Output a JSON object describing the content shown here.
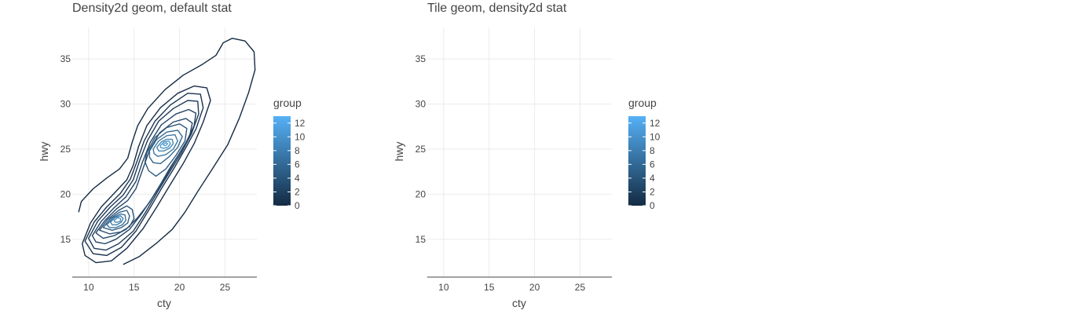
{
  "chart_data": [
    {
      "type": "line",
      "title": "Density2d geom, default stat",
      "xlabel": "cty",
      "ylabel": "hwy",
      "xlim": [
        8.2,
        28.5
      ],
      "ylim": [
        10.8,
        38.5
      ],
      "xticks": [
        10,
        15,
        20,
        25
      ],
      "yticks": [
        15,
        20,
        25,
        30,
        35
      ],
      "grid": true,
      "legend": {
        "title": "group",
        "placement": "right",
        "min": 0,
        "max": 13,
        "ticks": [
          0,
          2,
          4,
          6,
          8,
          10,
          12
        ],
        "color_low": "#132B43",
        "color_high": "#56B1F7"
      },
      "series": [
        {
          "group": 1,
          "color": "#132B43",
          "points": [
            [
              8.9,
              18.0
            ],
            [
              9.2,
              19.2
            ],
            [
              10.5,
              20.6
            ],
            [
              12.0,
              21.8
            ],
            [
              13.4,
              22.8
            ],
            [
              14.3,
              24.0
            ],
            [
              14.8,
              25.8
            ],
            [
              15.4,
              27.6
            ],
            [
              16.5,
              29.5
            ],
            [
              18.4,
              31.6
            ],
            [
              20.4,
              33.2
            ],
            [
              22.5,
              34.4
            ],
            [
              24.0,
              35.4
            ],
            [
              24.8,
              36.8
            ],
            [
              25.8,
              37.3
            ],
            [
              27.2,
              37.0
            ],
            [
              28.2,
              35.8
            ],
            [
              28.3,
              33.8
            ],
            [
              27.6,
              31.3
            ],
            [
              26.6,
              28.5
            ],
            [
              25.3,
              25.5
            ],
            [
              23.6,
              22.8
            ],
            [
              22.0,
              20.3
            ],
            [
              20.6,
              18.0
            ],
            [
              19.2,
              16.1
            ],
            [
              17.5,
              14.6
            ],
            [
              15.6,
              13.1
            ],
            [
              13.8,
              12.2
            ]
          ]
        },
        {
          "group": 2,
          "color": "#172C48",
          "points": [
            [
              9.3,
              14.5
            ],
            [
              10.2,
              16.8
            ],
            [
              11.4,
              18.6
            ],
            [
              13.0,
              20.3
            ],
            [
              14.2,
              21.6
            ],
            [
              14.9,
              23.2
            ],
            [
              15.5,
              25.3
            ],
            [
              16.4,
              27.6
            ],
            [
              17.9,
              29.6
            ],
            [
              19.8,
              31.2
            ],
            [
              21.6,
              32.0
            ],
            [
              23.0,
              31.8
            ],
            [
              23.4,
              30.4
            ],
            [
              22.6,
              28.0
            ],
            [
              21.6,
              25.6
            ],
            [
              20.4,
              23.4
            ],
            [
              19.0,
              21.1
            ],
            [
              17.5,
              18.6
            ],
            [
              16.0,
              16.2
            ],
            [
              14.2,
              14.0
            ],
            [
              12.5,
              12.6
            ],
            [
              10.8,
              12.4
            ],
            [
              9.6,
              13.2
            ]
          ]
        },
        {
          "group": 3,
          "color": "#1A3350",
          "points": [
            [
              9.6,
              14.8
            ],
            [
              10.6,
              16.9
            ],
            [
              12.0,
              18.6
            ],
            [
              13.5,
              20.1
            ],
            [
              14.6,
              21.7
            ],
            [
              15.3,
              23.6
            ],
            [
              16.1,
              25.9
            ],
            [
              17.3,
              28.1
            ],
            [
              19.0,
              29.9
            ],
            [
              20.9,
              31.2
            ],
            [
              22.3,
              31.1
            ],
            [
              22.6,
              29.6
            ],
            [
              21.8,
              27.2
            ],
            [
              20.6,
              25.0
            ],
            [
              19.4,
              22.9
            ],
            [
              18.0,
              20.6
            ],
            [
              16.6,
              18.2
            ],
            [
              15.2,
              15.9
            ],
            [
              13.6,
              14.1
            ],
            [
              12.0,
              13.2
            ],
            [
              10.5,
              13.4
            ]
          ]
        },
        {
          "group": 4,
          "color": "#1E3A59",
          "points": [
            [
              10.0,
              15.1
            ],
            [
              11.0,
              17.0
            ],
            [
              12.4,
              18.6
            ],
            [
              13.8,
              19.9
            ],
            [
              14.9,
              21.6
            ],
            [
              15.6,
              23.7
            ],
            [
              16.5,
              26.0
            ],
            [
              17.7,
              28.1
            ],
            [
              19.3,
              29.5
            ],
            [
              20.9,
              30.4
            ],
            [
              22.0,
              30.3
            ],
            [
              22.1,
              28.9
            ],
            [
              21.3,
              26.7
            ],
            [
              20.2,
              24.6
            ],
            [
              19.0,
              22.6
            ],
            [
              17.6,
              20.3
            ],
            [
              16.2,
              17.9
            ],
            [
              14.9,
              15.9
            ],
            [
              13.3,
              14.5
            ],
            [
              11.9,
              13.8
            ],
            [
              10.6,
              14.0
            ]
          ]
        },
        {
          "group": 5,
          "color": "#224263",
          "points": [
            [
              10.4,
              15.4
            ],
            [
              11.4,
              17.0
            ],
            [
              12.8,
              18.5
            ],
            [
              14.1,
              19.7
            ],
            [
              15.2,
              21.4
            ],
            [
              15.9,
              23.5
            ],
            [
              16.8,
              25.8
            ],
            [
              18.0,
              27.7
            ],
            [
              19.6,
              28.9
            ],
            [
              21.0,
              29.4
            ],
            [
              21.8,
              29.0
            ],
            [
              21.6,
              27.6
            ],
            [
              20.7,
              25.7
            ],
            [
              19.6,
              23.9
            ],
            [
              18.5,
              22.0
            ],
            [
              17.2,
              19.9
            ],
            [
              15.8,
              17.8
            ],
            [
              14.5,
              16.1
            ],
            [
              13.0,
              15.0
            ],
            [
              11.8,
              14.5
            ],
            [
              10.8,
              14.7
            ]
          ]
        },
        {
          "group": 6,
          "color": "#26496C",
          "points": [
            [
              10.8,
              15.7
            ],
            [
              11.8,
              17.1
            ],
            [
              13.1,
              18.4
            ],
            [
              14.3,
              19.3
            ],
            [
              15.2,
              20.6
            ],
            [
              15.9,
              22.6
            ],
            [
              16.7,
              24.9
            ],
            [
              17.8,
              26.8
            ],
            [
              19.3,
              28.0
            ],
            [
              20.7,
              28.4
            ],
            [
              21.4,
              27.9
            ],
            [
              21.1,
              26.4
            ],
            [
              20.1,
              24.7
            ],
            [
              19.0,
              23.0
            ],
            [
              17.9,
              21.1
            ],
            [
              16.7,
              19.1
            ],
            [
              15.4,
              17.4
            ],
            [
              14.1,
              16.1
            ],
            [
              12.8,
              15.4
            ],
            [
              11.6,
              15.1
            ]
          ]
        },
        {
          "group": 7,
          "color": "#2A5175",
          "points": [
            [
              11.2,
              16.0
            ],
            [
              12.1,
              17.2
            ],
            [
              13.3,
              18.2
            ],
            [
              14.2,
              18.7
            ],
            [
              14.8,
              18.3
            ],
            [
              15.0,
              17.3
            ],
            [
              14.5,
              16.4
            ],
            [
              13.5,
              15.8
            ],
            [
              12.3,
              15.6
            ]
          ]
        },
        {
          "group": 8,
          "color": "#2E587E",
          "points": [
            [
              16.4,
              24.6
            ],
            [
              17.3,
              26.3
            ],
            [
              18.6,
              27.4
            ],
            [
              20.0,
              27.8
            ],
            [
              20.8,
              27.3
            ],
            [
              20.6,
              25.9
            ],
            [
              19.6,
              24.3
            ],
            [
              18.5,
              22.8
            ],
            [
              17.4,
              22.0
            ],
            [
              16.6,
              22.6
            ],
            [
              16.2,
              23.6
            ]
          ]
        },
        {
          "group": 9,
          "color": "#326088",
          "points": [
            [
              11.6,
              16.3
            ],
            [
              12.4,
              17.3
            ],
            [
              13.4,
              18.0
            ],
            [
              14.2,
              18.2
            ],
            [
              14.5,
              17.6
            ],
            [
              14.3,
              16.8
            ],
            [
              13.6,
              16.3
            ],
            [
              12.6,
              16.0
            ]
          ]
        },
        {
          "group": 10,
          "color": "#36688F",
          "points": [
            [
              16.7,
              24.8
            ],
            [
              17.5,
              26.1
            ],
            [
              18.6,
              26.9
            ],
            [
              19.8,
              27.1
            ],
            [
              20.3,
              26.4
            ],
            [
              19.8,
              25.2
            ],
            [
              18.9,
              24.2
            ],
            [
              17.9,
              23.4
            ],
            [
              17.1,
              23.5
            ],
            [
              16.7,
              24.1
            ]
          ]
        },
        {
          "group": 11,
          "color": "#3A7099",
          "points": [
            [
              12.0,
              16.6
            ],
            [
              12.7,
              17.4
            ],
            [
              13.5,
              17.8
            ],
            [
              14.0,
              17.7
            ],
            [
              14.1,
              17.1
            ],
            [
              13.7,
              16.6
            ],
            [
              13.0,
              16.3
            ],
            [
              12.3,
              16.3
            ]
          ]
        },
        {
          "group": 12,
          "color": "#3F78A2",
          "points": [
            [
              17.1,
              25.0
            ],
            [
              17.7,
              25.9
            ],
            [
              18.6,
              26.5
            ],
            [
              19.5,
              26.6
            ],
            [
              19.8,
              25.9
            ],
            [
              19.3,
              25.0
            ],
            [
              18.5,
              24.4
            ],
            [
              17.6,
              24.2
            ],
            [
              17.2,
              24.5
            ]
          ]
        },
        {
          "group": 13,
          "color": "#4380AB",
          "points": [
            [
              12.4,
              16.9
            ],
            [
              12.9,
              17.4
            ],
            [
              13.5,
              17.6
            ],
            [
              13.8,
              17.3
            ],
            [
              13.6,
              16.9
            ],
            [
              13.1,
              16.6
            ],
            [
              12.6,
              16.6
            ]
          ]
        },
        {
          "group": 14,
          "color": "#4788B5",
          "points": [
            [
              17.5,
              25.2
            ],
            [
              18.0,
              25.8
            ],
            [
              18.6,
              26.1
            ],
            [
              19.2,
              26.1
            ],
            [
              19.3,
              25.6
            ],
            [
              18.9,
              25.1
            ],
            [
              18.3,
              24.8
            ],
            [
              17.7,
              24.8
            ]
          ]
        },
        {
          "group": 15,
          "color": "#4C91BF",
          "points": [
            [
              12.8,
              17.1
            ],
            [
              13.2,
              17.4
            ],
            [
              13.5,
              17.3
            ],
            [
              13.5,
              17.0
            ],
            [
              13.2,
              16.9
            ],
            [
              12.9,
              16.9
            ]
          ]
        },
        {
          "group": 16,
          "color": "#5099C8",
          "points": [
            [
              17.9,
              25.4
            ],
            [
              18.3,
              25.8
            ],
            [
              18.8,
              25.9
            ],
            [
              19.0,
              25.6
            ],
            [
              18.7,
              25.2
            ],
            [
              18.2,
              25.1
            ],
            [
              17.9,
              25.2
            ]
          ]
        },
        {
          "group": 17,
          "color": "#55A1D2",
          "points": [
            [
              18.2,
              25.5
            ],
            [
              18.5,
              25.7
            ],
            [
              18.7,
              25.6
            ],
            [
              18.5,
              25.4
            ],
            [
              18.3,
              25.4
            ]
          ]
        }
      ]
    },
    {
      "type": "heatmap",
      "title": "Tile geom, density2d stat",
      "xlabel": "cty",
      "ylabel": "hwy",
      "xlim": [
        8.2,
        28.5
      ],
      "ylim": [
        10.8,
        38.5
      ],
      "xticks": [
        10,
        15,
        20,
        25
      ],
      "yticks": [
        15,
        20,
        25,
        30,
        35
      ],
      "grid": true,
      "legend": {
        "title": "group",
        "placement": "right",
        "min": 0,
        "max": 13,
        "ticks": [
          0,
          2,
          4,
          6,
          8,
          10,
          12
        ],
        "color_low": "#132B43",
        "color_high": "#56B1F7"
      }
    }
  ]
}
